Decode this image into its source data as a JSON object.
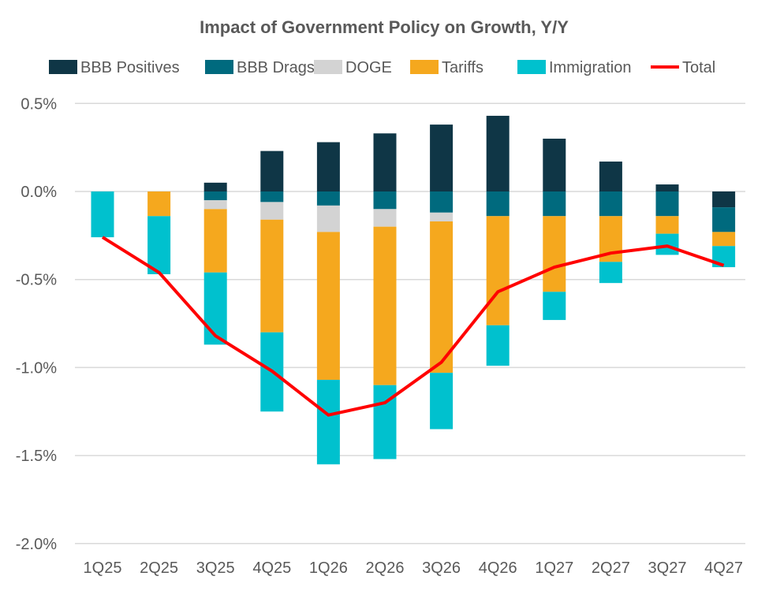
{
  "chart_data": {
    "type": "bar",
    "stacked": true,
    "title": "Impact of Government Policy on Growth, Y/Y",
    "xlabel": "",
    "ylabel": "",
    "ylim": [
      -2.0,
      0.5
    ],
    "yticks": [
      "0.5%",
      "0.0%",
      "-0.5%",
      "-1.0%",
      "-1.5%",
      "-2.0%"
    ],
    "ytick_values": [
      0.5,
      0.0,
      -0.5,
      -1.0,
      -1.5,
      -2.0
    ],
    "grid": true,
    "legend_position": "top",
    "categories": [
      "1Q25",
      "2Q25",
      "3Q25",
      "4Q25",
      "1Q26",
      "2Q26",
      "3Q26",
      "4Q26",
      "1Q27",
      "2Q27",
      "3Q27",
      "4Q27"
    ],
    "series": [
      {
        "name": "BBB Positives",
        "type": "bar",
        "color": "#0f3646",
        "values": [
          0,
          0,
          0.05,
          0.23,
          0.28,
          0.33,
          0.38,
          0.43,
          0.3,
          0.17,
          0.04,
          -0.09
        ]
      },
      {
        "name": "BBB Drags",
        "type": "bar",
        "color": "#006a7e",
        "values": [
          0,
          0,
          -0.05,
          -0.06,
          -0.08,
          -0.1,
          -0.12,
          -0.14,
          -0.14,
          -0.14,
          -0.14,
          -0.14
        ]
      },
      {
        "name": "DOGE",
        "type": "bar",
        "color": "#d3d3d3",
        "values": [
          0,
          0,
          -0.05,
          -0.1,
          -0.15,
          -0.1,
          -0.05,
          0,
          0,
          0,
          0,
          0
        ]
      },
      {
        "name": "Tariffs",
        "type": "bar",
        "color": "#f5a81e",
        "values": [
          0,
          -0.14,
          -0.36,
          -0.64,
          -0.84,
          -0.9,
          -0.86,
          -0.62,
          -0.43,
          -0.26,
          -0.1,
          -0.08
        ]
      },
      {
        "name": "Immigration",
        "type": "bar",
        "color": "#00c1ce",
        "values": [
          -0.26,
          -0.33,
          -0.41,
          -0.45,
          -0.48,
          -0.42,
          -0.32,
          -0.23,
          -0.16,
          -0.12,
          -0.12,
          -0.12
        ]
      },
      {
        "name": "Total",
        "type": "line",
        "color": "#ff0000",
        "values": [
          -0.26,
          -0.46,
          -0.82,
          -1.02,
          -1.27,
          -1.2,
          -0.97,
          -0.57,
          -0.43,
          -0.35,
          -0.31,
          -0.42
        ]
      }
    ]
  }
}
